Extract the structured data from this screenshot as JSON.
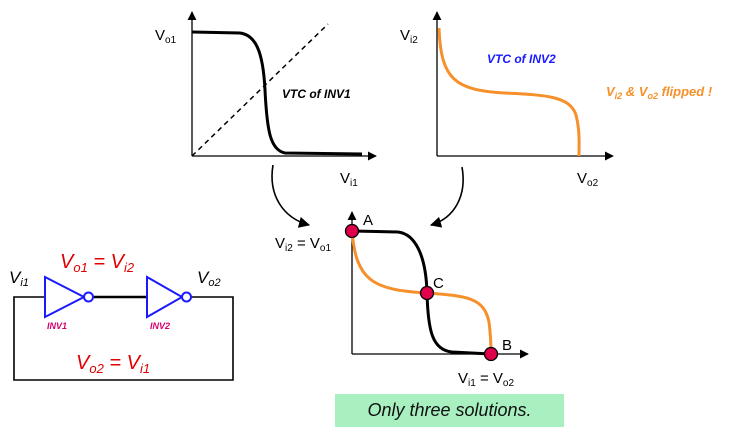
{
  "graph1": {
    "y_label": "V",
    "y_sub": "o1",
    "x_label": "V",
    "x_sub": "i1",
    "curve_label": "VTC of INV1"
  },
  "graph2": {
    "y_label": "V",
    "y_sub": "i2",
    "x_label": "V",
    "x_sub": "o2",
    "curve_label": "VTC of INV2",
    "note_p1": "V",
    "note_s1": "i2",
    "note_mid": " & V",
    "note_s2": "o2",
    "note_end": " flipped !"
  },
  "graph3": {
    "y_label": "V",
    "y_sub": "i2",
    "y_eq": " = V",
    "y_sub2": "o1",
    "x_label": "V",
    "x_sub": "i1",
    "x_eq": " = V",
    "x_sub2": "o2",
    "point_a": "A",
    "point_b": "B",
    "point_c": "C"
  },
  "circuit": {
    "input": "V",
    "input_sub": "i1",
    "output": "V",
    "output_sub": "o2",
    "eq_top": "V",
    "eq_top_s1": "o1",
    "eq_top_mid": " = V",
    "eq_top_s2": "i2",
    "eq_bottom": "V",
    "eq_bottom_s1": "o2",
    "eq_bottom_mid": " = V",
    "eq_bottom_s2": "i1",
    "inv1": "INV1",
    "inv2": "INV2"
  },
  "caption": "Only three solutions.",
  "colors": {
    "orange": "#f5902a",
    "red": "#e00000",
    "blue": "#1a1aff",
    "magenta": "#d6006d",
    "dot": "#e0004a",
    "caption_bg": "#a8f0c0"
  }
}
